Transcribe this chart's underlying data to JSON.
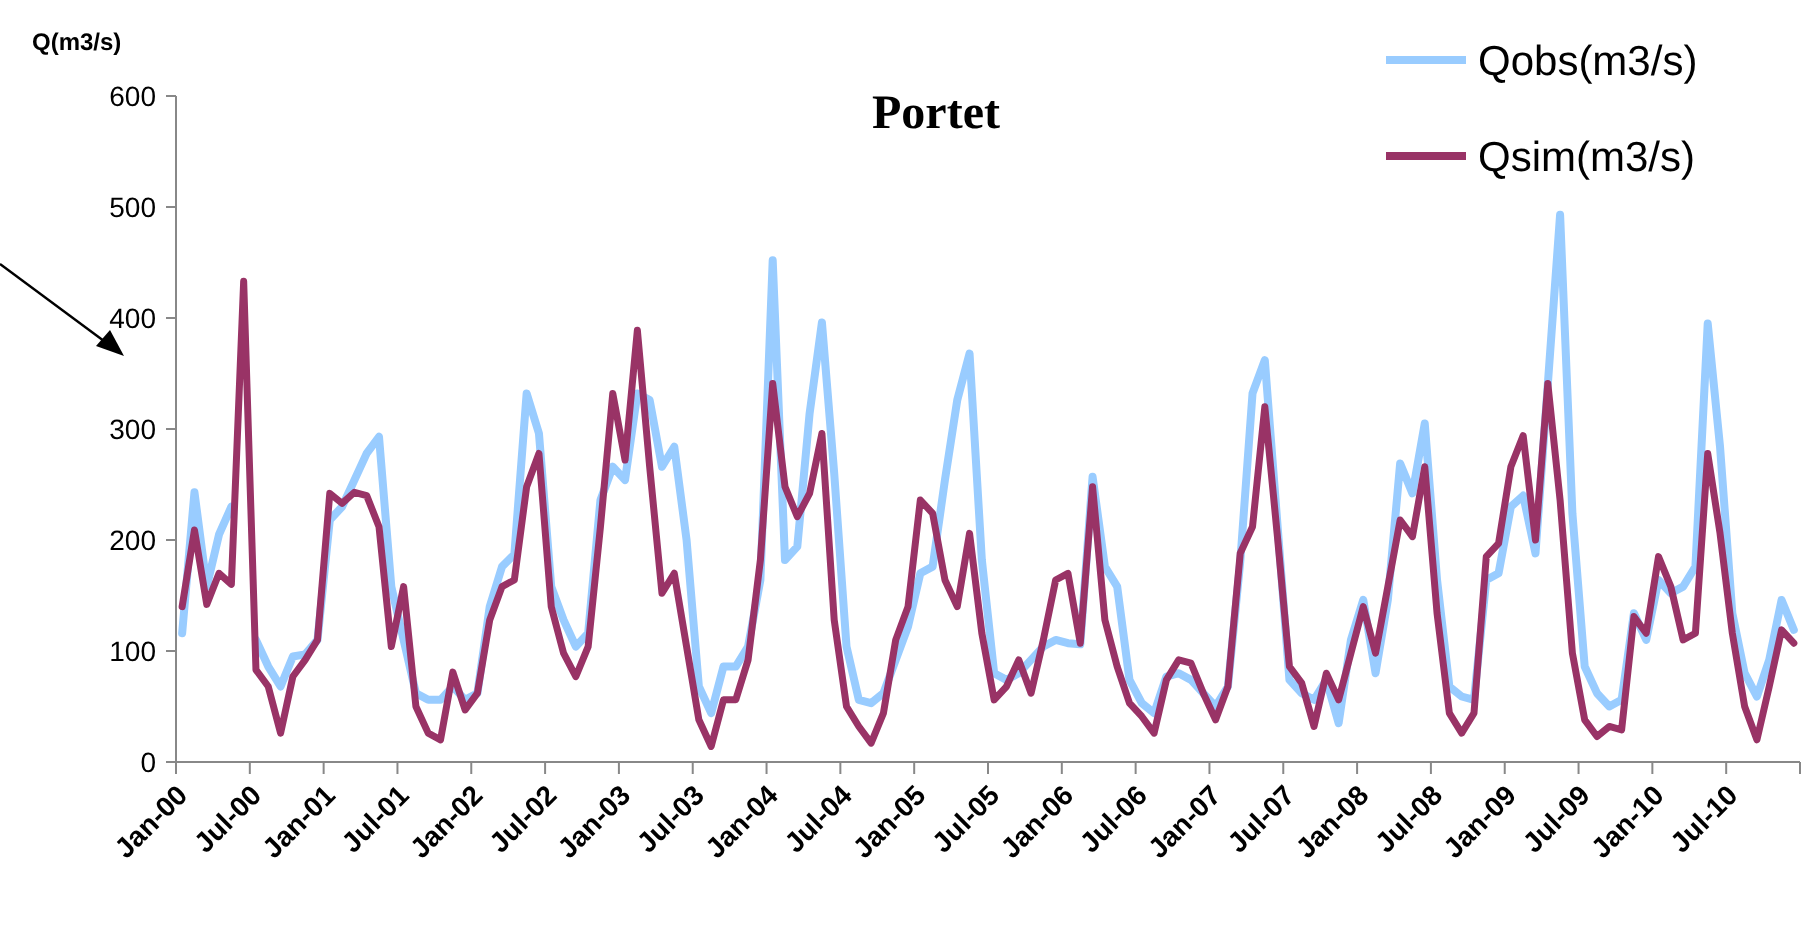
{
  "chart_data": {
    "type": "line",
    "title": "Portet",
    "ylabel": "Q(m3/s)",
    "categories": [
      "Jan-00",
      null,
      null,
      null,
      null,
      null,
      "Jul-00",
      null,
      null,
      null,
      null,
      null,
      "Jan-01",
      null,
      null,
      null,
      null,
      null,
      "Jul-01",
      null,
      null,
      null,
      null,
      null,
      "Jan-02",
      null,
      null,
      null,
      null,
      null,
      "Jul-02",
      null,
      null,
      null,
      null,
      null,
      "Jan-03",
      null,
      null,
      null,
      null,
      null,
      "Jul-03",
      null,
      null,
      null,
      null,
      null,
      "Jan-04",
      null,
      null,
      null,
      null,
      null,
      "Jul-04",
      null,
      null,
      null,
      null,
      null,
      "Jan-05",
      null,
      null,
      null,
      null,
      null,
      "Jul-05",
      null,
      null,
      null,
      null,
      null,
      "Jan-06",
      null,
      null,
      null,
      null,
      null,
      "Jul-06",
      null,
      null,
      null,
      null,
      null,
      "Jan-07",
      null,
      null,
      null,
      null,
      null,
      "Jul-07",
      null,
      null,
      null,
      null,
      null,
      "Jan-08",
      null,
      null,
      null,
      null,
      null,
      "Jul-08",
      null,
      null,
      null,
      null,
      null,
      "Jan-09",
      null,
      null,
      null,
      null,
      null,
      "Jul-09",
      null,
      null,
      null,
      null,
      null,
      "Jan-10",
      null,
      null,
      null,
      null,
      null,
      "Jul-10",
      null,
      null,
      null,
      null,
      null
    ],
    "series": [
      {
        "name": "Qobs(m3/s)",
        "color": "#99ccff",
        "values": [
          116,
          243,
          158,
          205,
          230,
          null,
          110,
          86,
          68,
          95,
          97,
          110,
          218,
          230,
          254,
          278,
          293,
          158,
          110,
          62,
          56,
          56,
          68,
          56,
          62,
          140,
          176,
          187,
          332,
          296,
          158,
          128,
          104,
          116,
          236,
          266,
          254,
          332,
          326,
          266,
          284,
          200,
          68,
          44,
          86,
          86,
          104,
          164,
          452,
          182,
          194,
          314,
          396,
          260,
          104,
          56,
          53,
          62,
          92,
          122,
          170,
          176,
          254,
          326,
          368,
          182,
          80,
          74,
          80,
          92,
          104,
          110,
          107,
          106,
          257,
          176,
          158,
          74,
          53,
          44,
          77,
          80,
          74,
          62,
          50,
          68,
          180,
          332,
          362,
          218,
          74,
          62,
          56,
          74,
          35,
          110,
          146,
          80,
          146,
          269,
          242,
          305,
          164,
          68,
          59,
          56,
          164,
          170,
          230,
          240,
          188,
          340,
          493,
          224,
          86,
          62,
          50,
          56,
          134,
          110,
          164,
          152,
          158,
          176,
          395,
          284,
          134,
          80,
          59,
          92,
          146,
          119
        ]
      },
      {
        "name": "Qsim(m3/s)",
        "color": "#993366",
        "values": [
          140,
          209,
          142,
          170,
          160,
          433,
          83,
          68,
          26,
          77,
          92,
          110,
          242,
          233,
          243,
          240,
          212,
          104,
          158,
          50,
          26,
          20,
          81,
          47,
          62,
          128,
          158,
          164,
          248,
          278,
          140,
          98,
          77,
          104,
          212,
          332,
          272,
          389,
          266,
          152,
          170,
          104,
          38,
          14,
          56,
          56,
          92,
          182,
          341,
          248,
          221,
          242,
          296,
          128,
          50,
          32,
          17,
          44,
          110,
          140,
          236,
          224,
          164,
          140,
          206,
          116,
          56,
          68,
          92,
          62,
          110,
          164,
          170,
          107,
          248,
          128,
          86,
          53,
          41,
          26,
          74,
          92,
          89,
          62,
          38,
          68,
          188,
          212,
          320,
          206,
          86,
          71,
          32,
          80,
          56,
          98,
          140,
          98,
          158,
          218,
          203,
          266,
          134,
          44,
          26,
          44,
          185,
          197,
          266,
          294,
          200,
          341,
          236,
          98,
          38,
          23,
          32,
          29,
          131,
          116,
          185,
          158,
          110,
          116,
          278,
          206,
          116,
          50,
          20,
          68,
          119,
          107
        ]
      }
    ],
    "ylim": [
      0,
      600
    ],
    "yticks": [
      0,
      100,
      200,
      300,
      400,
      500,
      600
    ],
    "grid": false,
    "legend": "top right",
    "marker": "none",
    "line_style": "solid"
  }
}
